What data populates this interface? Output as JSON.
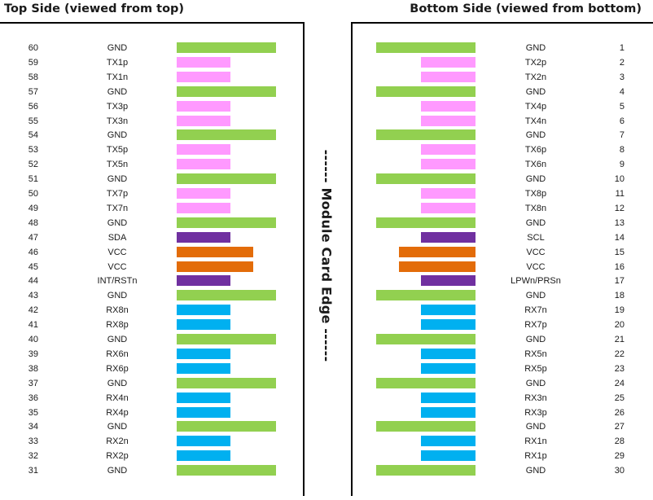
{
  "headings": {
    "top": "Top Side (viewed from top)",
    "bottom": "Bottom Side (viewed from bottom)",
    "edge": "------ Module Card Edge ------"
  },
  "colors": {
    "ground": "#92d050",
    "tx": "#ff99ff",
    "control": "#7030a0",
    "power": "#e36c09",
    "rx": "#00b0f0"
  },
  "top_side": [
    {
      "pin": "60",
      "signal": "GND",
      "pad": "ground-long"
    },
    {
      "pin": "59",
      "signal": "TX1p",
      "pad": "tx"
    },
    {
      "pin": "58",
      "signal": "TX1n",
      "pad": "tx"
    },
    {
      "pin": "57",
      "signal": "GND",
      "pad": "ground-long"
    },
    {
      "pin": "56",
      "signal": "TX3p",
      "pad": "tx"
    },
    {
      "pin": "55",
      "signal": "TX3n",
      "pad": "tx"
    },
    {
      "pin": "54",
      "signal": "GND",
      "pad": "ground-long"
    },
    {
      "pin": "53",
      "signal": "TX5p",
      "pad": "tx"
    },
    {
      "pin": "52",
      "signal": "TX5n",
      "pad": "tx"
    },
    {
      "pin": "51",
      "signal": "GND",
      "pad": "ground-long"
    },
    {
      "pin": "50",
      "signal": "TX7p",
      "pad": "tx"
    },
    {
      "pin": "49",
      "signal": "TX7n",
      "pad": "tx"
    },
    {
      "pin": "48",
      "signal": "GND",
      "pad": "ground-long"
    },
    {
      "pin": "47",
      "signal": "SDA",
      "pad": "control"
    },
    {
      "pin": "46",
      "signal": "VCC",
      "pad": "power-medium"
    },
    {
      "pin": "45",
      "signal": "VCC",
      "pad": "power-medium"
    },
    {
      "pin": "44",
      "signal": "INT/RSTn",
      "pad": "control"
    },
    {
      "pin": "43",
      "signal": "GND",
      "pad": "ground-long"
    },
    {
      "pin": "42",
      "signal": "RX8n",
      "pad": "rx"
    },
    {
      "pin": "41",
      "signal": "RX8p",
      "pad": "rx"
    },
    {
      "pin": "40",
      "signal": "GND",
      "pad": "ground-long"
    },
    {
      "pin": "39",
      "signal": "RX6n",
      "pad": "rx"
    },
    {
      "pin": "38",
      "signal": "RX6p",
      "pad": "rx"
    },
    {
      "pin": "37",
      "signal": "GND",
      "pad": "ground-long"
    },
    {
      "pin": "36",
      "signal": "RX4n",
      "pad": "rx"
    },
    {
      "pin": "35",
      "signal": "RX4p",
      "pad": "rx"
    },
    {
      "pin": "34",
      "signal": "GND",
      "pad": "ground-long"
    },
    {
      "pin": "33",
      "signal": "RX2n",
      "pad": "rx"
    },
    {
      "pin": "32",
      "signal": "RX2p",
      "pad": "rx"
    },
    {
      "pin": "31",
      "signal": "GND",
      "pad": "ground-long"
    }
  ],
  "bottom_side": [
    {
      "pin": "1",
      "signal": "GND",
      "pad": "ground-long"
    },
    {
      "pin": "2",
      "signal": "TX2p",
      "pad": "tx"
    },
    {
      "pin": "3",
      "signal": "TX2n",
      "pad": "tx"
    },
    {
      "pin": "4",
      "signal": "GND",
      "pad": "ground-long"
    },
    {
      "pin": "5",
      "signal": "TX4p",
      "pad": "tx"
    },
    {
      "pin": "6",
      "signal": "TX4n",
      "pad": "tx"
    },
    {
      "pin": "7",
      "signal": "GND",
      "pad": "ground-long"
    },
    {
      "pin": "8",
      "signal": "TX6p",
      "pad": "tx"
    },
    {
      "pin": "9",
      "signal": "TX6n",
      "pad": "tx"
    },
    {
      "pin": "10",
      "signal": "GND",
      "pad": "ground-long"
    },
    {
      "pin": "11",
      "signal": "TX8p",
      "pad": "tx"
    },
    {
      "pin": "12",
      "signal": "TX8n",
      "pad": "tx"
    },
    {
      "pin": "13",
      "signal": "GND",
      "pad": "ground-long"
    },
    {
      "pin": "14",
      "signal": "SCL",
      "pad": "control"
    },
    {
      "pin": "15",
      "signal": "VCC",
      "pad": "power-medium"
    },
    {
      "pin": "16",
      "signal": "VCC",
      "pad": "power-medium"
    },
    {
      "pin": "17",
      "signal": "LPWn/PRSn",
      "pad": "control"
    },
    {
      "pin": "18",
      "signal": "GND",
      "pad": "ground-long"
    },
    {
      "pin": "19",
      "signal": "RX7n",
      "pad": "rx"
    },
    {
      "pin": "20",
      "signal": "RX7p",
      "pad": "rx"
    },
    {
      "pin": "21",
      "signal": "GND",
      "pad": "ground-long"
    },
    {
      "pin": "22",
      "signal": "RX5n",
      "pad": "rx"
    },
    {
      "pin": "23",
      "signal": "RX5p",
      "pad": "rx"
    },
    {
      "pin": "24",
      "signal": "GND",
      "pad": "ground-long"
    },
    {
      "pin": "25",
      "signal": "RX3n",
      "pad": "rx"
    },
    {
      "pin": "26",
      "signal": "RX3p",
      "pad": "rx"
    },
    {
      "pin": "27",
      "signal": "GND",
      "pad": "ground-long"
    },
    {
      "pin": "28",
      "signal": "RX1n",
      "pad": "rx"
    },
    {
      "pin": "29",
      "signal": "RX1p",
      "pad": "rx"
    },
    {
      "pin": "30",
      "signal": "GND",
      "pad": "ground-long"
    }
  ]
}
